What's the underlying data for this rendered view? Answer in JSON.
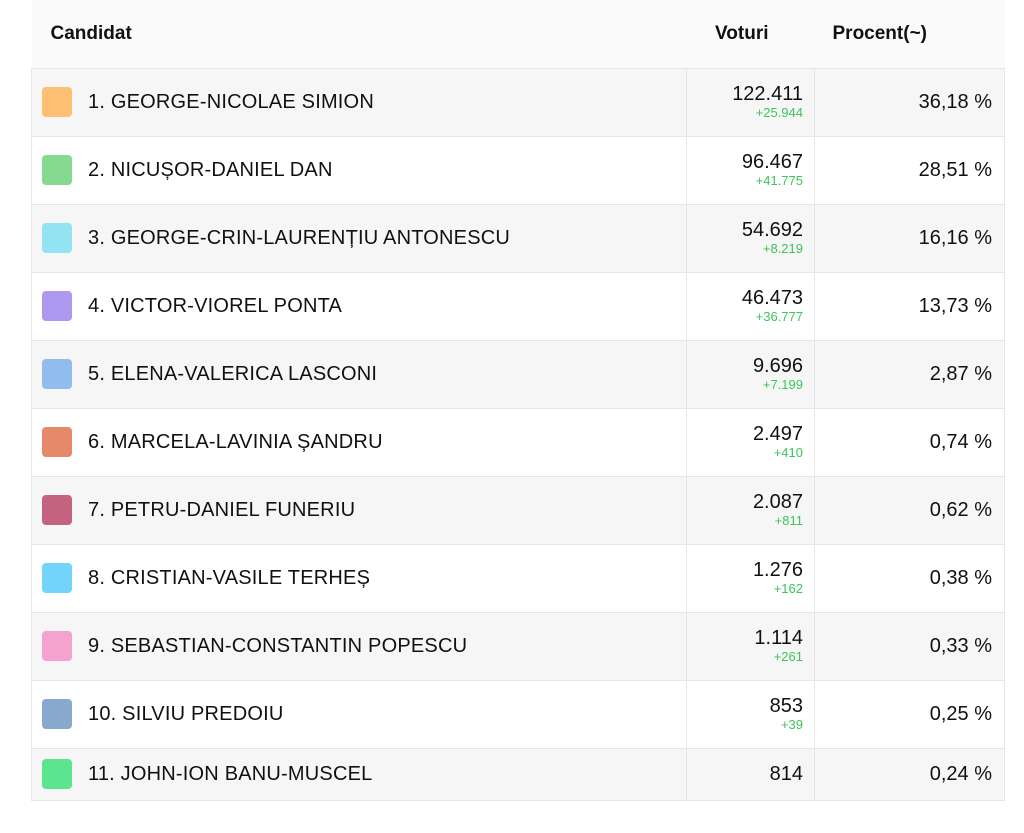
{
  "header": {
    "candidate": "Candidat",
    "votes": "Voturi",
    "percent": "Procent(~)"
  },
  "rows": [
    {
      "name": "1. GEORGE-NICOLAE SIMION",
      "votes": "122.411",
      "delta": "+25.944",
      "percent": "36,18 %",
      "color": "#fdbf72"
    },
    {
      "name": "2. NICUȘOR-DANIEL DAN",
      "votes": "96.467",
      "delta": "+41.775",
      "percent": "28,51 %",
      "color": "#86d990"
    },
    {
      "name": "3. GEORGE-CRIN-LAURENȚIU ANTONESCU",
      "votes": "54.692",
      "delta": "+8.219",
      "percent": "16,16 %",
      "color": "#93e3f3"
    },
    {
      "name": "4. VICTOR-VIOREL PONTA",
      "votes": "46.473",
      "delta": "+36.777",
      "percent": "13,73 %",
      "color": "#ad98ef"
    },
    {
      "name": "5. ELENA-VALERICA LASCONI",
      "votes": "9.696",
      "delta": "+7.199",
      "percent": "2,87 %",
      "color": "#90bcee"
    },
    {
      "name": "6. MARCELA-LAVINIA ȘANDRU",
      "votes": "2.497",
      "delta": "+410",
      "percent": "0,74 %",
      "color": "#e6896b"
    },
    {
      "name": "7. PETRU-DANIEL FUNERIU",
      "votes": "2.087",
      "delta": "+811",
      "percent": "0,62 %",
      "color": "#c4637f"
    },
    {
      "name": "8. CRISTIAN-VASILE TERHEȘ",
      "votes": "1.276",
      "delta": "+162",
      "percent": "0,38 %",
      "color": "#72d4fa"
    },
    {
      "name": "9. SEBASTIAN-CONSTANTIN POPESCU",
      "votes": "1.114",
      "delta": "+261",
      "percent": "0,33 %",
      "color": "#f4a3ce"
    },
    {
      "name": "10. SILVIU PREDOIU",
      "votes": "853",
      "delta": "+39",
      "percent": "0,25 %",
      "color": "#89a8cd"
    },
    {
      "name": "11. JOHN-ION BANU-MUSCEL",
      "votes": "814",
      "delta": "",
      "percent": "0,24 %",
      "color": "#5ce48e"
    }
  ]
}
